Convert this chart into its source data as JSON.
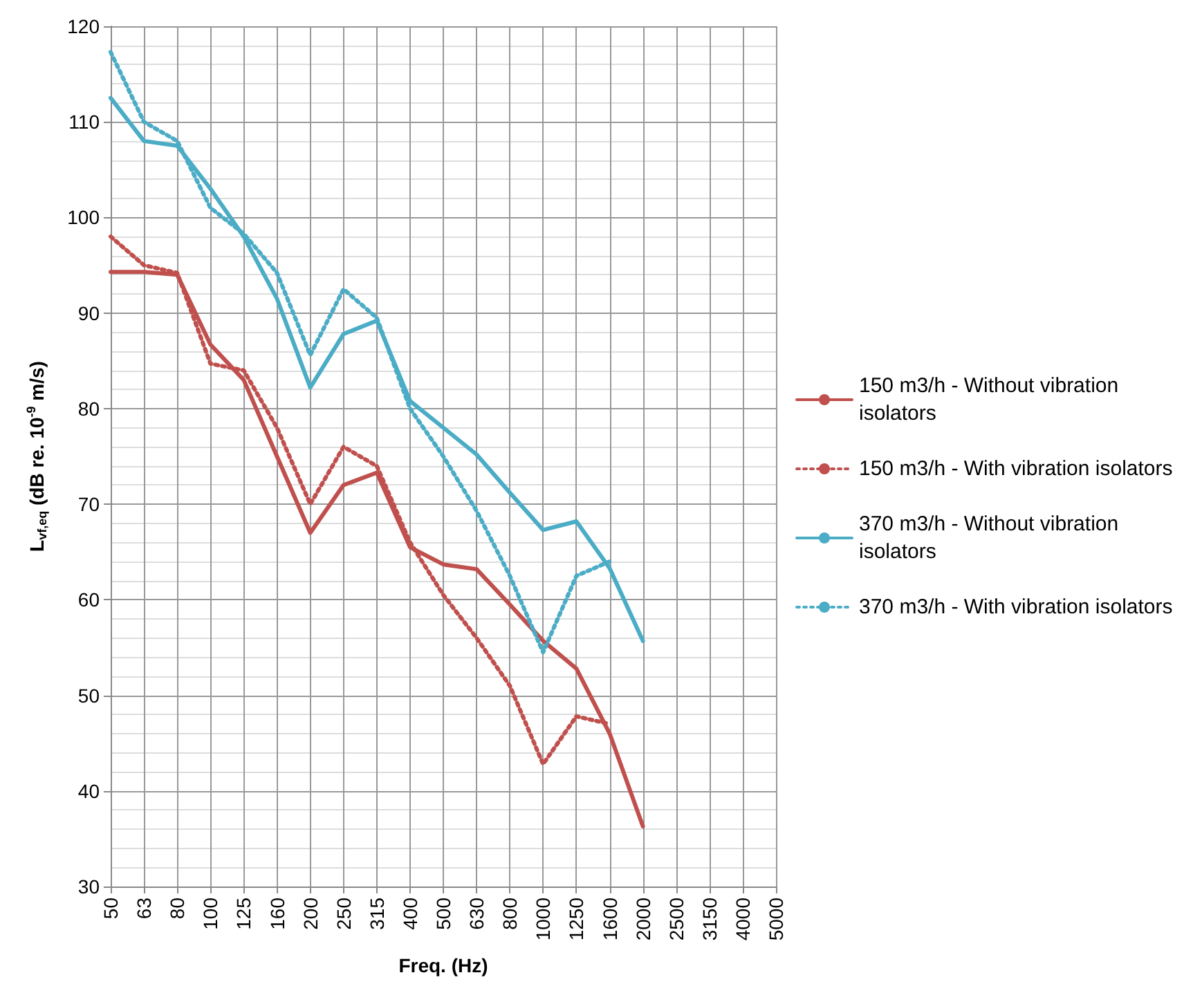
{
  "chart_data": {
    "type": "line",
    "xlabel": "Freq. (Hz)",
    "ylabel": "L$_{vf,eq}$ (dB re. 10$^{-9}$ m/s)",
    "categories": [
      "50",
      "63",
      "80",
      "100",
      "125",
      "160",
      "200",
      "250",
      "315",
      "400",
      "500",
      "630",
      "800",
      "1000",
      "1250",
      "1600",
      "2000",
      "2500",
      "3150",
      "4000",
      "5000"
    ],
    "series": [
      {
        "name": "150 m3/h - Without vibration isolators",
        "color": "#c0504d",
        "line_style": "solid",
        "values": [
          94.3,
          94.3,
          94,
          86.7,
          83,
          75,
          67,
          72,
          73.3,
          65.5,
          63.7,
          63.2,
          59.5,
          55.7,
          52.8,
          46,
          36.3,
          null,
          null,
          null,
          null
        ]
      },
      {
        "name": "150 m3/h - With vibration isolators",
        "color": "#c0504d",
        "line_style": "dotted",
        "values": [
          98,
          95,
          94.2,
          84.7,
          84,
          78,
          70,
          76,
          74,
          66,
          60.5,
          56,
          51,
          42.8,
          47.8,
          47,
          null,
          null,
          null,
          null,
          null
        ]
      },
      {
        "name": "370 m3/h - Without vibration isolators",
        "color": "#4bacc6",
        "line_style": "solid",
        "values": [
          112.5,
          108,
          107.5,
          103,
          98,
          91.5,
          82.2,
          87.8,
          89.2,
          80.8,
          78,
          75.2,
          71.2,
          67.3,
          68.2,
          63.3,
          55.7,
          null,
          null,
          null,
          null
        ]
      },
      {
        "name": "370 m3/h - With vibration isolators",
        "color": "#4bacc6",
        "line_style": "dotted",
        "values": [
          117.3,
          110,
          108,
          101,
          98.3,
          94.2,
          85.6,
          92.5,
          89.5,
          80,
          75,
          69.3,
          62.5,
          54.5,
          62.5,
          64,
          null,
          null,
          null,
          null,
          null
        ]
      }
    ],
    "ylim": [
      30,
      120
    ],
    "yticks": [
      30,
      40,
      50,
      60,
      70,
      80,
      90,
      100,
      110,
      120
    ],
    "grid": true,
    "legend": "right",
    "marker": "none"
  }
}
